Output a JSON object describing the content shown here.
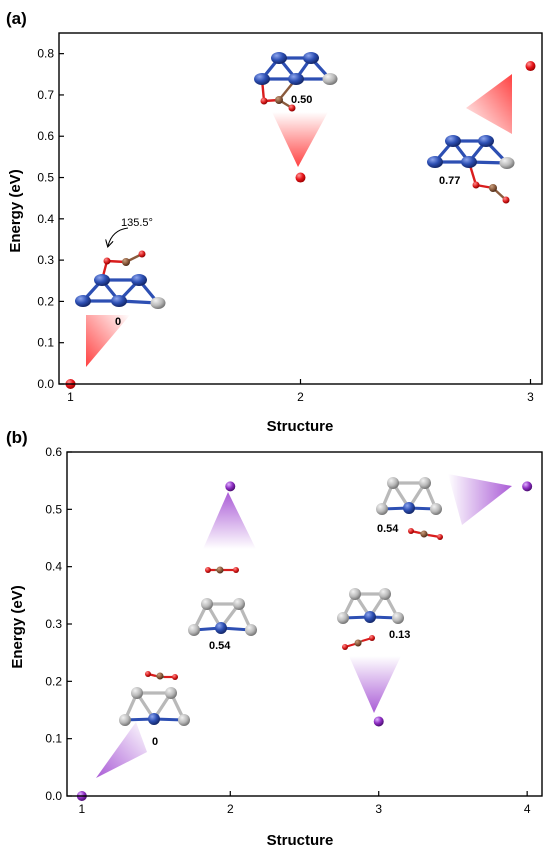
{
  "chart_data": [
    {
      "panel_label": "(a)",
      "type": "scatter",
      "xlabel": "Structure",
      "ylabel": "Energy (eV)",
      "xlim": [
        0.95,
        3.05
      ],
      "ylim": [
        0.0,
        0.85
      ],
      "xticks": [
        "1",
        "2",
        "3"
      ],
      "yticks": [
        "0.0",
        "0.1",
        "0.2",
        "0.3",
        "0.4",
        "0.5",
        "0.6",
        "0.7",
        "0.8"
      ],
      "series": [
        {
          "color": "#e8161b",
          "points": [
            {
              "x": 1,
              "y": 0.0
            },
            {
              "x": 2,
              "y": 0.5
            },
            {
              "x": 3,
              "y": 0.77
            }
          ]
        }
      ],
      "annotations": [
        "0",
        "0.50",
        "0.77",
        "135.5°"
      ]
    },
    {
      "panel_label": "(b)",
      "type": "scatter",
      "xlabel": "Structure",
      "ylabel": "Energy (eV)",
      "xlim": [
        0.9,
        4.1
      ],
      "ylim": [
        0.0,
        0.6
      ],
      "xticks": [
        "1",
        "2",
        "3",
        "4"
      ],
      "yticks": [
        "0.0",
        "0.1",
        "0.2",
        "0.3",
        "0.4",
        "0.5",
        "0.6"
      ],
      "series": [
        {
          "color": "#8f2fc4",
          "points": [
            {
              "x": 1,
              "y": 0.0
            },
            {
              "x": 2,
              "y": 0.54
            },
            {
              "x": 3,
              "y": 0.13
            },
            {
              "x": 4,
              "y": 0.54
            }
          ]
        }
      ],
      "annotations": [
        "0",
        "0.54",
        "0.13",
        "0.54"
      ]
    }
  ],
  "colors": {
    "atom_blue": "#2d4fb3",
    "atom_grey": "#b9b9b9",
    "atom_red": "#d91d1d",
    "atom_brown": "#8a5a3c",
    "marker_red": "#e8161b",
    "marker_purple": "#8f2fc4"
  }
}
